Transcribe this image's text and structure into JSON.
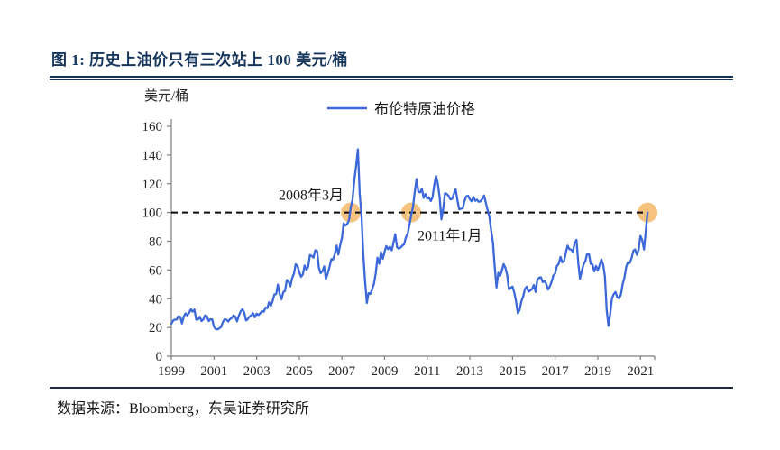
{
  "figure": {
    "title": "图 1:  历史上油价只有三次站上 100 美元/桶"
  },
  "source": {
    "text": "数据来源：Bloomberg，东吴证券研究所"
  },
  "chart_data": {
    "type": "line",
    "unit_label": "美元/桶",
    "legend": [
      {
        "name": "布伦特原油价格",
        "color": "#3c68d9"
      }
    ],
    "ylim": [
      0,
      160
    ],
    "y_ticks": [
      0,
      20,
      40,
      60,
      80,
      100,
      120,
      140,
      160
    ],
    "x_tick_labels": [
      "1999",
      "2001",
      "2003",
      "2005",
      "2007",
      "2009",
      "2011",
      "2013",
      "2015",
      "2017",
      "2019",
      "2021"
    ],
    "x_tick_interval_points": 24,
    "frequency": "monthly",
    "series_start": "1999-10",
    "series_end": "2022-02",
    "reference_line": {
      "value": 100,
      "style": "dashed",
      "color": "#0a0a0a"
    },
    "annotations": [
      {
        "text": "2008年3月",
        "attach_index": 101,
        "value": 100,
        "side": "left-above"
      },
      {
        "text": "2011年1月",
        "attach_index": 135,
        "value": 100,
        "side": "right-below"
      }
    ],
    "highlights": {
      "color": "#f2b45f",
      "opacity": 0.8,
      "radius": 11,
      "points": [
        {
          "label": "2008-03",
          "index": 101,
          "value": 100
        },
        {
          "label": "2011-01",
          "index": 135,
          "value": 100
        },
        {
          "label": "2022-02",
          "index": 268,
          "value": 100
        }
      ]
    },
    "series": [
      {
        "name": "布伦特原油价格",
        "values": [
          22.6,
          24.8,
          25.5,
          25.5,
          27.8,
          27.5,
          22.8,
          27.7,
          29.8,
          28.4,
          30.1,
          32.7,
          31.0,
          32.5,
          25.5,
          25.6,
          27.5,
          24.5,
          25.6,
          28.4,
          27.8,
          24.5,
          25.7,
          25.6,
          20.5,
          18.9,
          18.7,
          19.4,
          20.3,
          23.7,
          25.7,
          25.4,
          24.1,
          25.8,
          26.6,
          28.4,
          27.5,
          24.3,
          28.3,
          31.2,
          32.7,
          30.5,
          24.9,
          25.8,
          27.6,
          28.4,
          29.9,
          27.1,
          29.6,
          28.7,
          29.8,
          31.3,
          30.9,
          33.8,
          33.4,
          37.6,
          35.1,
          38.3,
          43.0,
          43.2,
          49.8,
          43.1,
          39.6,
          44.5,
          45.5,
          53.1,
          51.9,
          48.6,
          54.4,
          57.5,
          64.0,
          62.9,
          58.5,
          55.2,
          56.9,
          63.1,
          60.2,
          62.1,
          70.4,
          69.8,
          68.6,
          73.7,
          73.2,
          61.7,
          57.8,
          58.9,
          62.5,
          53.7,
          57.6,
          62.1,
          67.5,
          67.2,
          71.1,
          77.0,
          70.8,
          77.2,
          82.3,
          92.4,
          90.9,
          92.0,
          95.0,
          103.7,
          109.1,
          122.8,
          132.3,
          144.0,
          113.0,
          98.1,
          71.9,
          52.5,
          37.0,
          43.9,
          43.3,
          46.5,
          50.2,
          57.3,
          68.6,
          64.4,
          72.5,
          67.7,
          72.8,
          76.7,
          74.5,
          76.2,
          73.7,
          78.8,
          84.8,
          75.9,
          74.8,
          75.6,
          77.0,
          77.8,
          82.7,
          85.3,
          91.4,
          98.0,
          104.0,
          114.6,
          123.3,
          114.5,
          114.0,
          116.5,
          110.1,
          112.8,
          109.6,
          110.5,
          107.9,
          110.7,
          119.3,
          125.4,
          119.8,
          110.3,
          95.2,
          102.6,
          113.4,
          112.9,
          111.7,
          109.1,
          109.5,
          112.9,
          116.1,
          108.5,
          102.3,
          102.6,
          102.9,
          107.9,
          111.3,
          111.6,
          109.1,
          107.8,
          110.8,
          108.1,
          108.9,
          107.5,
          107.8,
          109.5,
          111.8,
          106.8,
          101.6,
          97.1,
          87.4,
          79.0,
          62.3,
          47.8,
          58.1,
          55.9,
          59.5,
          64.1,
          61.5,
          56.6,
          46.5,
          47.6,
          48.4,
          44.3,
          38.0,
          29.8,
          32.2,
          38.2,
          41.6,
          46.7,
          48.3,
          44.9,
          45.8,
          46.6,
          49.5,
          44.7,
          53.3,
          54.6,
          54.9,
          51.6,
          52.3,
          50.3,
          46.4,
          48.5,
          51.7,
          56.2,
          57.5,
          62.7,
          64.4,
          69.1,
          65.3,
          66.0,
          72.1,
          76.9,
          74.4,
          74.2,
          72.5,
          78.9,
          81.0,
          64.7,
          53.9,
          59.4,
          64.0,
          66.1,
          71.2,
          71.3,
          64.2,
          63.9,
          59.0,
          62.8,
          59.7,
          63.2,
          67.3,
          63.6,
          55.7,
          32.0,
          21.0,
          29.4,
          40.3,
          43.2,
          44.7,
          40.9,
          40.2,
          43.0,
          50.2,
          54.8,
          62.3,
          65.4,
          64.8,
          68.3,
          73.4,
          74.3,
          70.5,
          74.5,
          83.7,
          80.8,
          74.2,
          86.5,
          100.0
        ]
      }
    ],
    "colors": {
      "line": "#3c68d9",
      "axis": "#7f7f7f",
      "tick_text": "#262626",
      "title_navy": "#17365d"
    }
  }
}
